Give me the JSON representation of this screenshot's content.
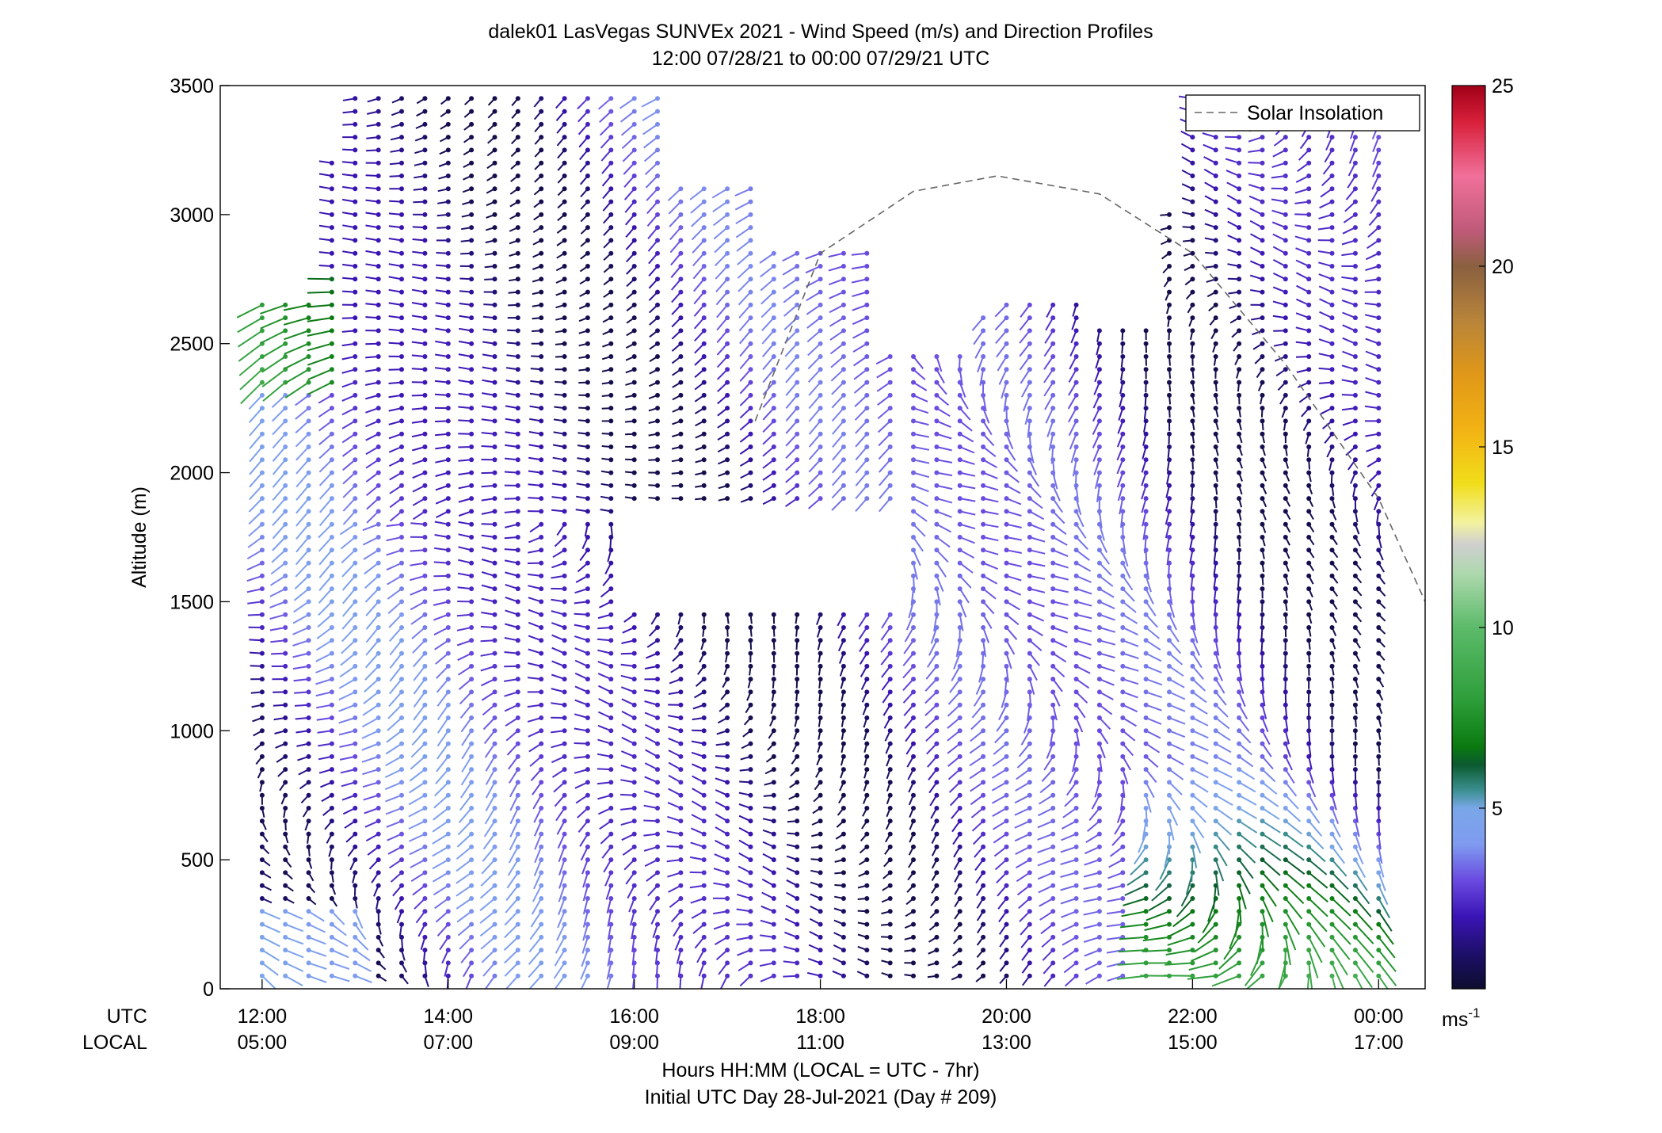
{
  "chart_data": {
    "type": "wind-barb-profile",
    "title": "dalek01 LasVegas SUNVEx 2021 - Wind Speed (m/s) and Direction Profiles",
    "subtitle": "12:00 07/28/21 to 00:00 07/29/21  UTC",
    "ylabel": "Altitude (m)",
    "xlabel": "Hours HH:MM  (LOCAL = UTC - 7hr)",
    "footnote": "Initial UTC Day 28-Jul-2021 (Day # 209)",
    "ylim": [
      0,
      3500
    ],
    "xlim_utc_hours": [
      11.55,
      24.5
    ],
    "y_ticks": [
      0,
      500,
      1000,
      1500,
      2000,
      2500,
      3000,
      3500
    ],
    "x_row_labels": [
      "UTC",
      "LOCAL"
    ],
    "x_ticks": [
      {
        "utc": "12:00",
        "local": "05:00",
        "hour": 12
      },
      {
        "utc": "14:00",
        "local": "07:00",
        "hour": 14
      },
      {
        "utc": "16:00",
        "local": "09:00",
        "hour": 16
      },
      {
        "utc": "18:00",
        "local": "11:00",
        "hour": 18
      },
      {
        "utc": "20:00",
        "local": "13:00",
        "hour": 20
      },
      {
        "utc": "22:00",
        "local": "15:00",
        "hour": 22
      },
      {
        "utc": "00:00",
        "local": "17:00",
        "hour": 24
      }
    ],
    "legend": {
      "label": "Solar Insolation",
      "placement": "top-right"
    },
    "solar_insolation": {
      "units": "altitude-scaled",
      "points": [
        [
          17.3,
          2200
        ],
        [
          18.0,
          2850
        ],
        [
          19.0,
          3090
        ],
        [
          19.9,
          3150
        ],
        [
          21.0,
          3080
        ],
        [
          22.0,
          2850
        ],
        [
          23.0,
          2420
        ],
        [
          24.0,
          1900
        ],
        [
          24.5,
          1500
        ]
      ]
    },
    "colorbar": {
      "unit_label": "ms",
      "unit_exponent": "-1",
      "range": [
        0,
        25
      ],
      "ticks": [
        5,
        10,
        15,
        20,
        25
      ],
      "stops": [
        [
          0,
          "#0d0d2e"
        ],
        [
          1,
          "#1d0f6b"
        ],
        [
          2,
          "#3b14b5"
        ],
        [
          3,
          "#6a4ae0"
        ],
        [
          4,
          "#7f9bf0"
        ],
        [
          5,
          "#7aa7e8"
        ],
        [
          5.5,
          "#3a8f8f"
        ],
        [
          6.2,
          "#0b5a30"
        ],
        [
          6.7,
          "#0a7a10"
        ],
        [
          8,
          "#2e9e3a"
        ],
        [
          10,
          "#5cbb6a"
        ],
        [
          11.5,
          "#aed8ae"
        ],
        [
          12.3,
          "#cfcfcf"
        ],
        [
          12.9,
          "#f3f3a0"
        ],
        [
          14,
          "#f1dd1a"
        ],
        [
          15.5,
          "#f2b214"
        ],
        [
          17,
          "#e09818"
        ],
        [
          18.5,
          "#b8843a"
        ],
        [
          20,
          "#8a6040"
        ],
        [
          21,
          "#c05a7a"
        ],
        [
          22.5,
          "#f0709a"
        ],
        [
          24,
          "#d8203a"
        ],
        [
          25,
          "#a00018"
        ]
      ]
    },
    "profiles": {
      "time_start_hour": 12.0,
      "time_end_hour": 24.0,
      "time_step_hours": 0.25,
      "altitude_step_m": 50,
      "speed_range_mps": [
        0,
        12
      ],
      "direction_convention": "degrees, direction wind is from",
      "note": "Barb field is a gridded wind-profile retrieval; speeds mostly 1-5 m/s aloft, up to ~9 m/s near surface after 21:00 UTC"
    }
  }
}
